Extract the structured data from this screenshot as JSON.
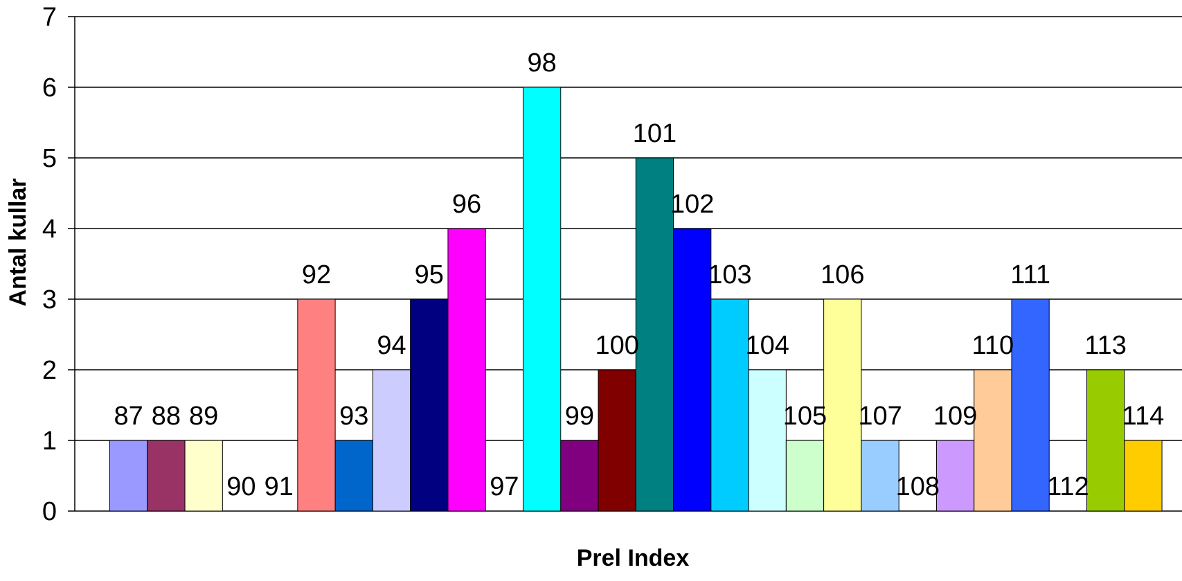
{
  "chart_data": {
    "type": "bar",
    "xlabel": "Prel Index",
    "ylabel": "Antal kullar",
    "ylim": [
      0,
      7
    ],
    "yticks": [
      "0",
      "1",
      "2",
      "3",
      "4",
      "5",
      "6",
      "7"
    ],
    "grid": true,
    "legend": "none",
    "categories": [
      "87",
      "88",
      "89",
      "90",
      "91",
      "92",
      "93",
      "94",
      "95",
      "96",
      "97",
      "98",
      "99",
      "100",
      "101",
      "102",
      "103",
      "104",
      "105",
      "106",
      "107",
      "108",
      "109",
      "110",
      "111",
      "112",
      "113",
      "114"
    ],
    "values": [
      1,
      1,
      1,
      0,
      0,
      3,
      1,
      2,
      3,
      4,
      0,
      6,
      1,
      2,
      5,
      4,
      3,
      2,
      1,
      3,
      1,
      0,
      1,
      2,
      3,
      0,
      2,
      1
    ],
    "colors": [
      "#9999FF",
      "#993366",
      "#FFFFCC",
      "#CCFFFF",
      "#660066",
      "#FF8080",
      "#0066CC",
      "#CCCCFF",
      "#000080",
      "#FF00FF",
      "#FFFF00",
      "#00FFFF",
      "#800080",
      "#800000",
      "#008080",
      "#0000FF",
      "#00CCFF",
      "#CCFFFF",
      "#CCFFCC",
      "#FFFF99",
      "#99CCFF",
      "#FF99CC",
      "#CC99FF",
      "#FFCC99",
      "#3366FF",
      "#33CCCC",
      "#99CC00",
      "#FFCC00"
    ]
  }
}
